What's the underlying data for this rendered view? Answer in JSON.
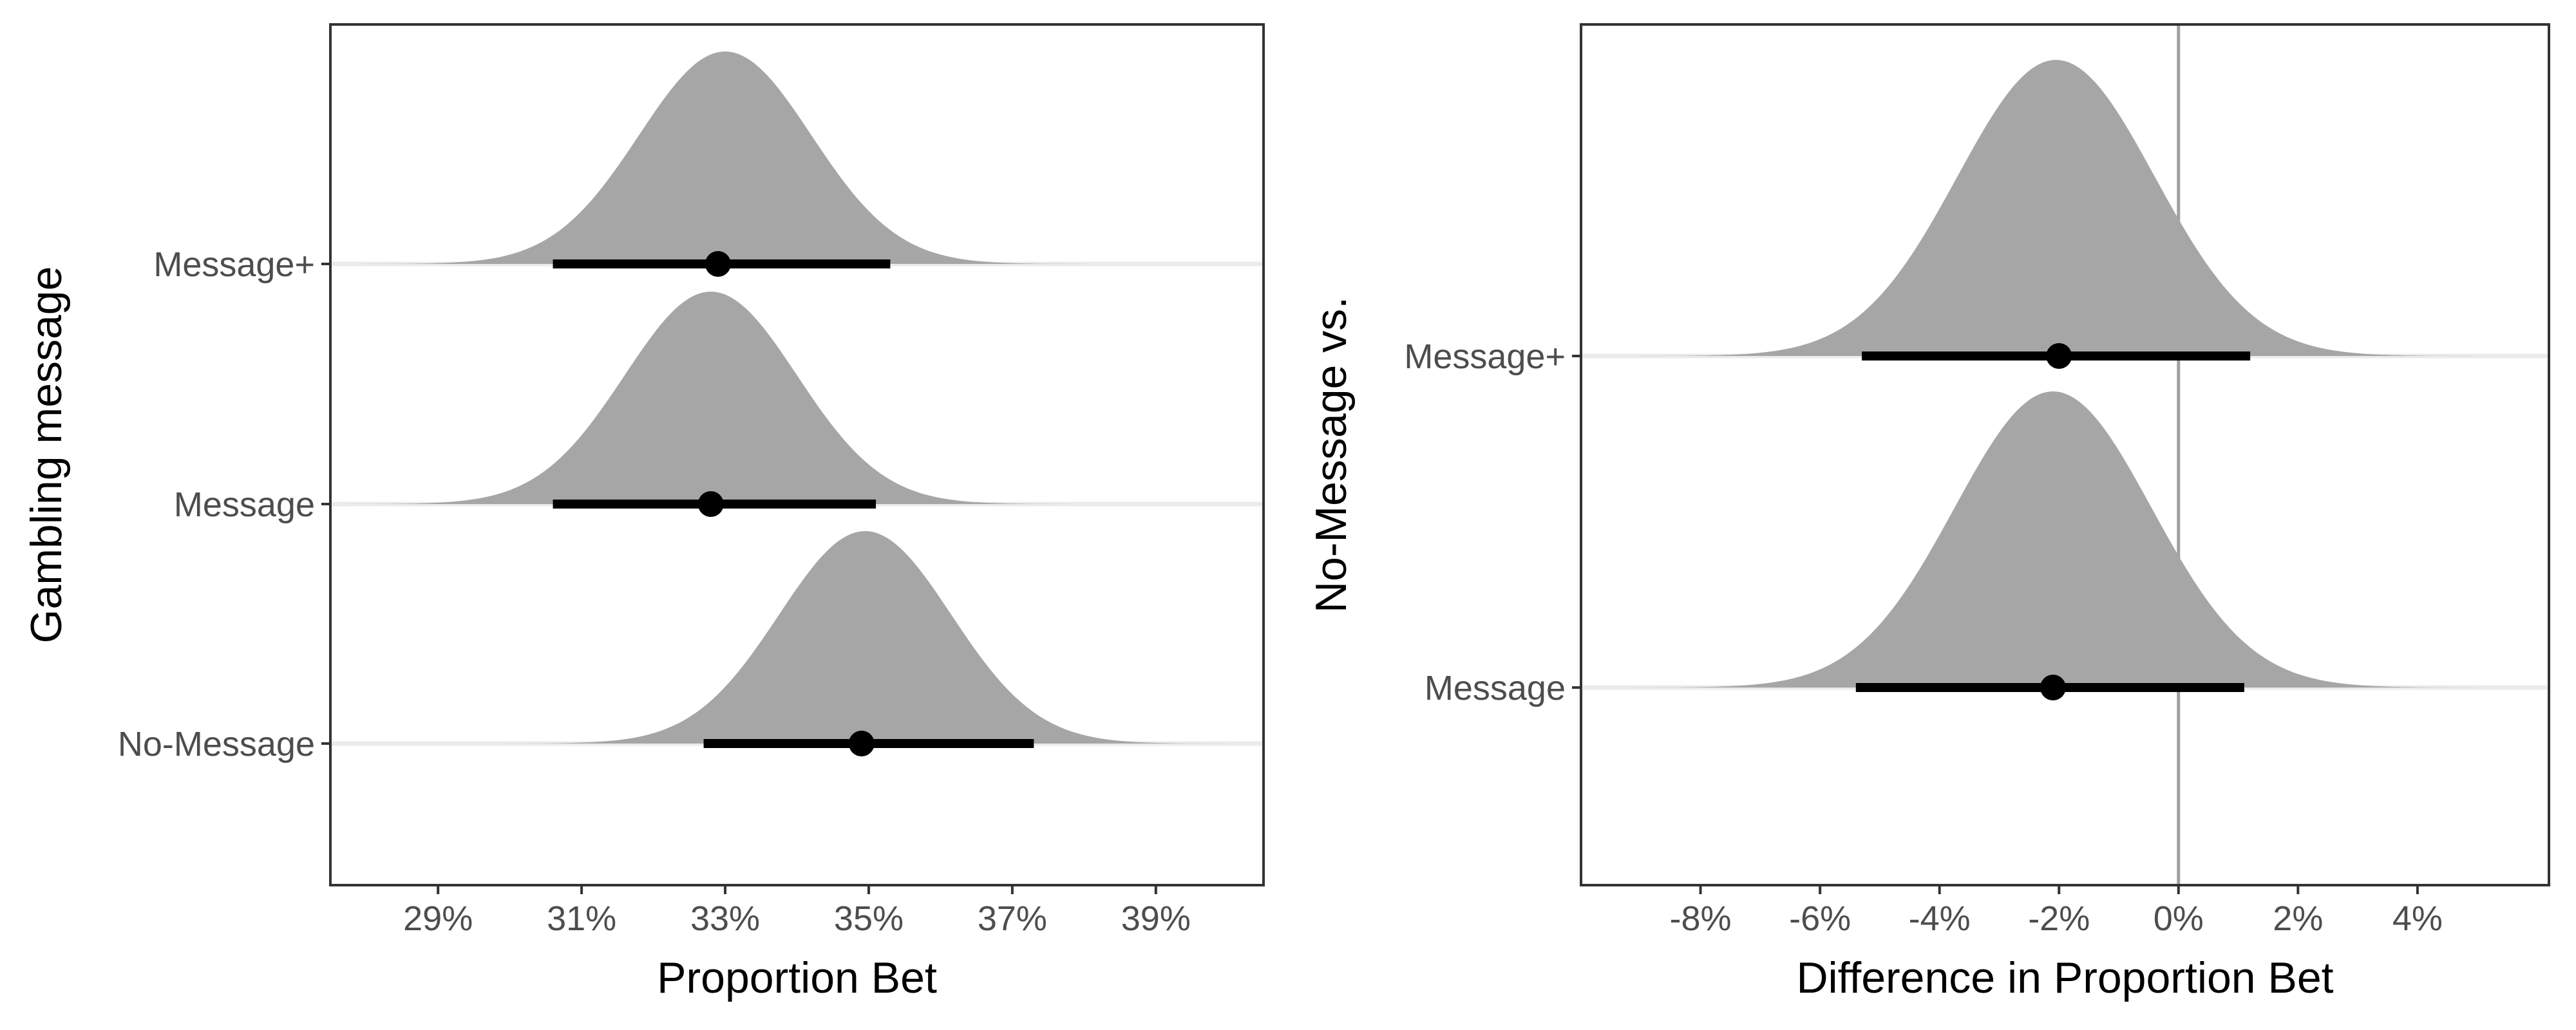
{
  "chart_data": [
    {
      "type": "area",
      "subtype": "halfeye",
      "xlabel": "Proportion Bet",
      "ylabel": "Gambling message",
      "xlim": [
        27.5,
        40.5
      ],
      "x_ticks": [
        "29%",
        "31%",
        "33%",
        "35%",
        "37%",
        "39%"
      ],
      "x_tick_values": [
        29,
        31,
        33,
        35,
        37,
        39
      ],
      "categories": [
        "Message+",
        "Message",
        "No-Message"
      ],
      "series": [
        {
          "category": "Message+",
          "mean": 33.0,
          "sd": 1.2,
          "point": 32.9,
          "interval": [
            30.6,
            35.3
          ]
        },
        {
          "category": "Message",
          "mean": 32.8,
          "sd": 1.2,
          "point": 32.8,
          "interval": [
            30.6,
            35.1
          ]
        },
        {
          "category": "No-Message",
          "mean": 34.95,
          "sd": 1.2,
          "point": 34.9,
          "interval": [
            32.7,
            37.3
          ]
        }
      ],
      "grid": false,
      "fill_color": "#a6a6a6",
      "interval_color": "#000000"
    },
    {
      "type": "area",
      "subtype": "halfeye",
      "xlabel": "Difference in Proportion Bet",
      "ylabel": "No-Message vs.",
      "xlim": [
        -10,
        6.2
      ],
      "x_ticks": [
        "-8%",
        "-6%",
        "-4%",
        "-2%",
        "0%",
        "2%",
        "4%"
      ],
      "x_tick_values": [
        -8,
        -6,
        -4,
        -2,
        0,
        2,
        4
      ],
      "reference_line": 0,
      "categories": [
        "Message+",
        "Message"
      ],
      "series": [
        {
          "category": "Message+",
          "mean": -2.05,
          "sd": 1.65,
          "point": -2.0,
          "interval": [
            -5.3,
            1.2
          ]
        },
        {
          "category": "Message",
          "mean": -2.1,
          "sd": 1.65,
          "point": -2.1,
          "interval": [
            -5.4,
            1.1
          ]
        }
      ],
      "grid": false,
      "fill_color": "#a6a6a6",
      "interval_color": "#000000"
    }
  ]
}
